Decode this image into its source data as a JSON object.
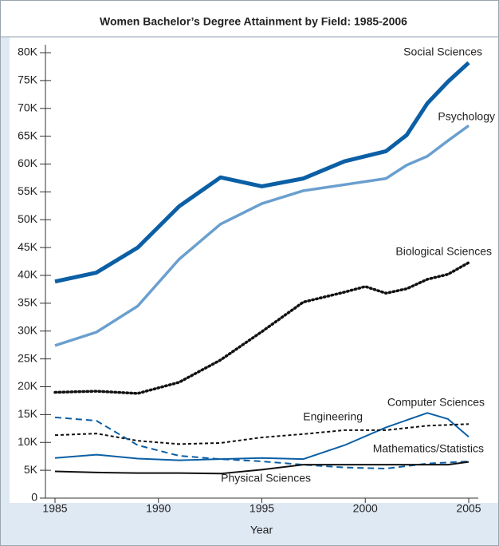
{
  "chart_data": {
    "type": "line",
    "title": "Women Bachelor’s Degree Attainment by Field: 1985-2006",
    "x_label": "Year",
    "xlim": [
      1985,
      2005
    ],
    "xticks": [
      1985,
      1990,
      1995,
      2000,
      2005
    ],
    "ylim": [
      0,
      80000
    ],
    "yticks": [
      0,
      {
        "value": 5000,
        "label": "5K"
      },
      {
        "value": 10000,
        "label": "10K"
      },
      {
        "value": 15000,
        "label": "15K"
      },
      {
        "value": 20000,
        "label": "20K"
      },
      {
        "value": 25000,
        "label": "25K"
      },
      {
        "value": 30000,
        "label": "30K"
      },
      {
        "value": 35000,
        "label": "35K"
      },
      {
        "value": 40000,
        "label": "40K"
      },
      {
        "value": 45000,
        "label": "45K"
      },
      {
        "value": 50000,
        "label": "50K"
      },
      {
        "value": 55000,
        "label": "55K"
      },
      {
        "value": 60000,
        "label": "60K"
      },
      {
        "value": 65000,
        "label": "65K"
      },
      {
        "value": 70000,
        "label": "70K"
      },
      {
        "value": 75000,
        "label": "75K"
      },
      {
        "value": 80000,
        "label": "80K"
      }
    ],
    "grid": false,
    "series": [
      {
        "name": "Social Sciences",
        "color": "#0b5fa5",
        "line_style": "solid",
        "line_width": 5,
        "x": [
          1985,
          1987,
          1989,
          1991,
          1993,
          1995,
          1997,
          1999,
          2001,
          2002,
          2003,
          2004,
          2005
        ],
        "values": [
          38900,
          40500,
          45000,
          52400,
          57600,
          56000,
          57400,
          60500,
          62300,
          65200,
          70900,
          74800,
          78200
        ]
      },
      {
        "name": "Psychology",
        "color": "#6a9fcf",
        "line_style": "solid",
        "line_width": 3.5,
        "x": [
          1985,
          1987,
          1989,
          1991,
          1993,
          1995,
          1997,
          1999,
          2001,
          2002,
          2003,
          2004,
          2005
        ],
        "values": [
          27400,
          29800,
          34500,
          42900,
          49200,
          52900,
          55200,
          56300,
          57400,
          59800,
          61400,
          64200,
          66900
        ]
      },
      {
        "name": "Biological Sciences",
        "color": "#111111",
        "line_style": "dotted",
        "line_width": 3.5,
        "x": [
          1985,
          1987,
          1989,
          1991,
          1993,
          1995,
          1997,
          1999,
          2000,
          2001,
          2002,
          2003,
          2004,
          2005
        ],
        "values": [
          19000,
          19200,
          18800,
          20800,
          24800,
          29900,
          35200,
          37000,
          38000,
          36800,
          37600,
          39300,
          40200,
          42300
        ]
      },
      {
        "name": "Computer Sciences",
        "color": "#0b5fa5",
        "line_style": "solid",
        "line_width": 2,
        "x": [
          1985,
          1987,
          1989,
          1991,
          1993,
          1995,
          1997,
          1999,
          2001,
          2003,
          2004,
          2005
        ],
        "values": [
          7200,
          7800,
          7100,
          6800,
          7000,
          7200,
          7000,
          9500,
          12700,
          15300,
          14200,
          11000
        ]
      },
      {
        "name": "Engineering",
        "color": "#111111",
        "line_style": "dashed",
        "line_width": 2,
        "x": [
          1985,
          1987,
          1989,
          1991,
          1993,
          1995,
          1997,
          1999,
          2001,
          2003,
          2005
        ],
        "values": [
          11300,
          11600,
          10300,
          9700,
          9900,
          10900,
          11500,
          12200,
          12200,
          13000,
          13300
        ]
      },
      {
        "name": "Mathematics/Statistics",
        "color": "#0b5fa5",
        "line_style": "longdash",
        "line_width": 2,
        "x": [
          1985,
          1987,
          1989,
          1991,
          1993,
          1995,
          1997,
          1999,
          2001,
          2003,
          2005
        ],
        "values": [
          14500,
          13900,
          9500,
          7600,
          7000,
          6600,
          6000,
          5500,
          5300,
          6200,
          6600
        ]
      },
      {
        "name": "Physical Sciences",
        "color": "#111111",
        "line_style": "solid",
        "line_width": 2,
        "x": [
          1985,
          1987,
          1989,
          1991,
          1993,
          1995,
          1997,
          1999,
          2001,
          2003,
          2004,
          2005
        ],
        "values": [
          4800,
          4600,
          4500,
          4500,
          4400,
          5100,
          6000,
          6000,
          6000,
          6000,
          6000,
          6500
        ]
      }
    ]
  }
}
